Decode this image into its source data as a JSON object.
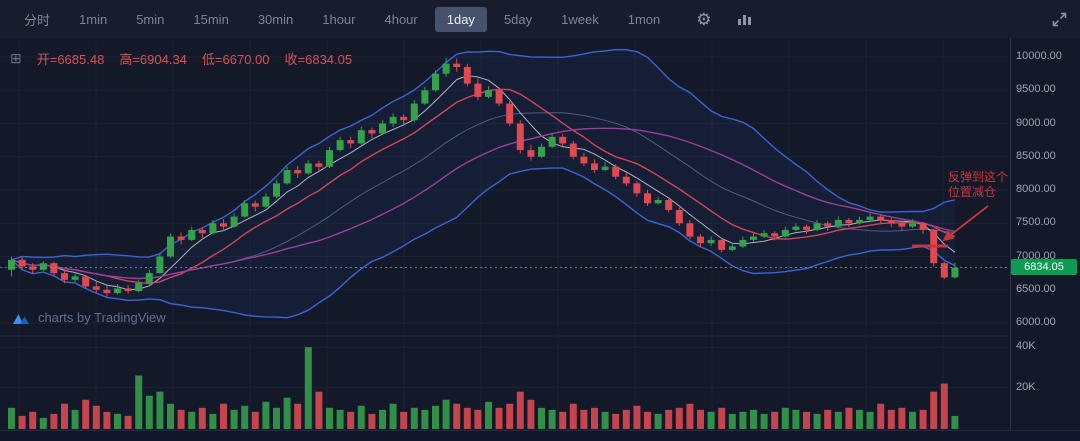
{
  "toolbar": {
    "items": [
      {
        "label": "分时",
        "active": false
      },
      {
        "label": "1min",
        "active": false
      },
      {
        "label": "5min",
        "active": false
      },
      {
        "label": "15min",
        "active": false
      },
      {
        "label": "30min",
        "active": false
      },
      {
        "label": "1hour",
        "active": false
      },
      {
        "label": "4hour",
        "active": false
      },
      {
        "label": "1day",
        "active": true
      },
      {
        "label": "5day",
        "active": false
      },
      {
        "label": "1week",
        "active": false
      },
      {
        "label": "1mon",
        "active": false
      }
    ]
  },
  "ohlc_bar": {
    "open": "开=6685.48",
    "high": "高=6904.34",
    "low": "低=6670.00",
    "close": "收=6834.05"
  },
  "price_scale": {
    "ticks": [
      "10000.00",
      "9500.00",
      "9000.00",
      "8500.00",
      "8000.00",
      "7500.00",
      "7000.00",
      "6500.00",
      "6000.00"
    ],
    "volume_ticks": [
      "40K",
      "20K"
    ],
    "current": "6834.05"
  },
  "annotation": {
    "line1": "反弹到这个",
    "line2": "位置减仓"
  },
  "watermark": "charts by TradingView",
  "chart_data": {
    "type": "candlestick",
    "title": "BTC daily candlestick chart with Bollinger bands, moving averages and volume",
    "y_axis": {
      "min": 6000,
      "max": 10000,
      "tick_values": [
        10000,
        9500,
        9000,
        8500,
        8000,
        7500,
        7000,
        6500,
        6000
      ]
    },
    "volume_axis": {
      "tick_values": [
        40000,
        20000
      ],
      "max": 45000
    },
    "current_price": 6834.05,
    "last_ohlc": {
      "open": 6685.48,
      "high": 6904.34,
      "low": 6670.0,
      "close": 6834.05
    },
    "candles": [
      [
        6800,
        7000,
        6700,
        6950
      ],
      [
        6950,
        6990,
        6800,
        6850
      ],
      [
        6850,
        6900,
        6740,
        6800
      ],
      [
        6800,
        6930,
        6780,
        6900
      ],
      [
        6900,
        6920,
        6700,
        6750
      ],
      [
        6750,
        6800,
        6600,
        6650
      ],
      [
        6650,
        6760,
        6620,
        6700
      ],
      [
        6700,
        6720,
        6520,
        6550
      ],
      [
        6550,
        6620,
        6450,
        6500
      ],
      [
        6500,
        6560,
        6400,
        6450
      ],
      [
        6450,
        6580,
        6430,
        6520
      ],
      [
        6520,
        6570,
        6440,
        6480
      ],
      [
        6480,
        6650,
        6460,
        6600
      ],
      [
        6600,
        6800,
        6580,
        6750
      ],
      [
        6750,
        7050,
        6740,
        7000
      ],
      [
        7000,
        7350,
        6980,
        7300
      ],
      [
        7300,
        7360,
        7180,
        7250
      ],
      [
        7250,
        7450,
        7230,
        7400
      ],
      [
        7400,
        7440,
        7280,
        7350
      ],
      [
        7350,
        7550,
        7330,
        7500
      ],
      [
        7500,
        7560,
        7380,
        7450
      ],
      [
        7450,
        7650,
        7430,
        7600
      ],
      [
        7600,
        7850,
        7580,
        7800
      ],
      [
        7800,
        7840,
        7680,
        7750
      ],
      [
        7750,
        7950,
        7730,
        7900
      ],
      [
        7900,
        8150,
        7880,
        8100
      ],
      [
        8100,
        8350,
        8080,
        8300
      ],
      [
        8300,
        8360,
        8180,
        8250
      ],
      [
        8250,
        8450,
        8230,
        8400
      ],
      [
        8400,
        8440,
        8280,
        8350
      ],
      [
        8350,
        8650,
        8330,
        8600
      ],
      [
        8600,
        8800,
        8580,
        8750
      ],
      [
        8750,
        8800,
        8630,
        8700
      ],
      [
        8700,
        8950,
        8680,
        8900
      ],
      [
        8900,
        8940,
        8780,
        8850
      ],
      [
        8850,
        9050,
        8830,
        9000
      ],
      [
        9000,
        9150,
        8950,
        9100
      ],
      [
        9100,
        9140,
        8980,
        9050
      ],
      [
        9050,
        9350,
        9030,
        9300
      ],
      [
        9300,
        9550,
        9280,
        9500
      ],
      [
        9500,
        9800,
        9480,
        9750
      ],
      [
        9750,
        9990,
        9700,
        9900
      ],
      [
        9900,
        9980,
        9780,
        9850
      ],
      [
        9850,
        9900,
        9560,
        9600
      ],
      [
        9600,
        9680,
        9350,
        9400
      ],
      [
        9400,
        9560,
        9380,
        9500
      ],
      [
        9500,
        9540,
        9260,
        9300
      ],
      [
        9300,
        9340,
        8960,
        9000
      ],
      [
        9000,
        9050,
        8550,
        8600
      ],
      [
        8600,
        8680,
        8440,
        8500
      ],
      [
        8500,
        8700,
        8480,
        8650
      ],
      [
        8650,
        8850,
        8630,
        8800
      ],
      [
        8800,
        8840,
        8660,
        8700
      ],
      [
        8700,
        8740,
        8460,
        8500
      ],
      [
        8500,
        8560,
        8360,
        8400
      ],
      [
        8400,
        8460,
        8260,
        8300
      ],
      [
        8300,
        8420,
        8280,
        8350
      ],
      [
        8350,
        8390,
        8160,
        8200
      ],
      [
        8200,
        8260,
        8060,
        8100
      ],
      [
        8100,
        8140,
        7900,
        7950
      ],
      [
        7950,
        8000,
        7760,
        7800
      ],
      [
        7800,
        7900,
        7780,
        7850
      ],
      [
        7850,
        7890,
        7660,
        7700
      ],
      [
        7700,
        7740,
        7460,
        7500
      ],
      [
        7500,
        7550,
        7260,
        7300
      ],
      [
        7300,
        7340,
        7140,
        7200
      ],
      [
        7200,
        7300,
        7160,
        7250
      ],
      [
        7250,
        7280,
        7060,
        7100
      ],
      [
        7100,
        7200,
        7080,
        7150
      ],
      [
        7150,
        7300,
        7130,
        7250
      ],
      [
        7250,
        7350,
        7230,
        7300
      ],
      [
        7300,
        7400,
        7280,
        7350
      ],
      [
        7350,
        7380,
        7240,
        7300
      ],
      [
        7300,
        7450,
        7280,
        7400
      ],
      [
        7400,
        7500,
        7380,
        7450
      ],
      [
        7450,
        7480,
        7340,
        7400
      ],
      [
        7400,
        7550,
        7380,
        7500
      ],
      [
        7500,
        7530,
        7390,
        7450
      ],
      [
        7450,
        7600,
        7430,
        7550
      ],
      [
        7550,
        7580,
        7440,
        7500
      ],
      [
        7500,
        7600,
        7480,
        7550
      ],
      [
        7550,
        7650,
        7530,
        7600
      ],
      [
        7600,
        7630,
        7490,
        7550
      ],
      [
        7550,
        7580,
        7440,
        7500
      ],
      [
        7500,
        7540,
        7390,
        7450
      ],
      [
        7450,
        7560,
        7430,
        7500
      ],
      [
        7500,
        7520,
        7340,
        7400
      ],
      [
        7400,
        7420,
        6850,
        6900
      ],
      [
        6900,
        6920,
        6660,
        6685
      ],
      [
        6685.48,
        6904.34,
        6670,
        6834.05
      ]
    ],
    "volumes_k": [
      10,
      6,
      8,
      5,
      7,
      12,
      9,
      14,
      11,
      8,
      7,
      6,
      26,
      16,
      18,
      12,
      9,
      8,
      10,
      7,
      12,
      9,
      11,
      8,
      13,
      10,
      15,
      12,
      40,
      18,
      10,
      9,
      8,
      11,
      7,
      9,
      12,
      8,
      10,
      9,
      11,
      14,
      12,
      10,
      9,
      13,
      10,
      12,
      18,
      14,
      10,
      9,
      8,
      12,
      9,
      10,
      8,
      7,
      9,
      11,
      8,
      7,
      9,
      10,
      12,
      9,
      8,
      10,
      7,
      8,
      9,
      7,
      8,
      10,
      9,
      8,
      7,
      9,
      8,
      10,
      9,
      8,
      12,
      9,
      10,
      8,
      9,
      18,
      22,
      6
    ],
    "overlays": {
      "sma_windows": [
        5,
        10,
        30
      ],
      "sma_colors": [
        "#c9ced9",
        "#d0455e",
        "#9b3f9b"
      ],
      "bollinger": {
        "window": 20,
        "mult": 2,
        "color": "#3c63d4",
        "fill": "rgba(60,99,212,0.07)"
      }
    },
    "colors": {
      "up": "#35a14b",
      "down": "#df4a52",
      "grid": "#1c2337",
      "scale_text": "#9aa4b8",
      "badge_bg": "#0d9b53",
      "dotted_line": "#848ea1",
      "annotation": "#c6363f"
    }
  }
}
